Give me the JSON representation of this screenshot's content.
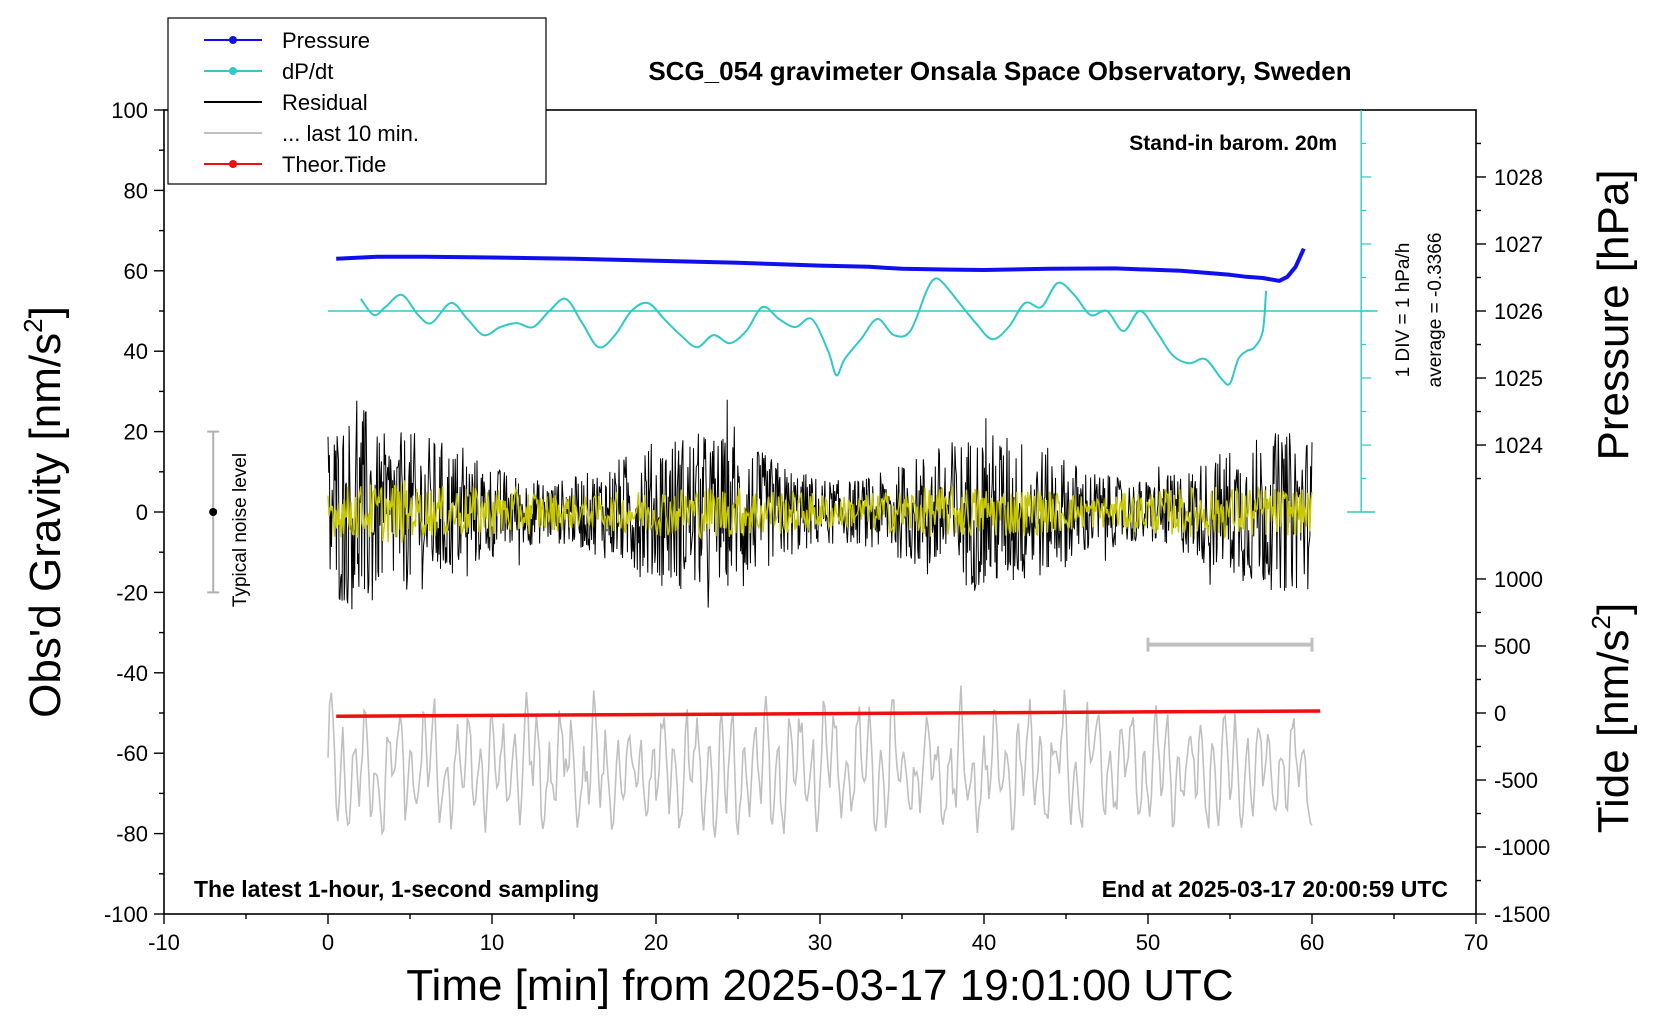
{
  "chart_data": {
    "type": "line",
    "title": "SCG_054 gravimeter Onsala Space Observatory, Sweden",
    "xlabel": "Time [min] from 2025-03-17 19:01:00 UTC",
    "ylabel_left_text": "Obs'd Gravity [nm/s",
    "ylabel_left_sup": "2",
    "ylabel_left_close": "]",
    "ylabel_right_top": "Pressure [hPa]",
    "ylabel_right_bottom_text": "Tide [nm/s",
    "ylabel_right_bottom_sup": "2",
    "ylabel_right_bottom_close": "]",
    "xlim": [
      -10,
      70
    ],
    "ylim": [
      -100,
      100
    ],
    "xticks": [
      "-10",
      "0",
      "10",
      "20",
      "30",
      "40",
      "50",
      "60",
      "70"
    ],
    "yticks_left": [
      "-100",
      "-80",
      "-60",
      "-40",
      "-20",
      "0",
      "20",
      "40",
      "60",
      "80",
      "100"
    ],
    "pressure_axis": {
      "ticks": [
        "1024",
        "1025",
        "1026",
        "1027",
        "1028"
      ],
      "values": [
        1024,
        1025,
        1026,
        1027,
        1028
      ],
      "gravity_equivalent_at_1026": 50,
      "gravity_units_per_hPa": 16.67
    },
    "tide_axis": {
      "ticks": [
        "1000",
        "500",
        "0",
        "-500",
        "-1000",
        "-1500"
      ],
      "values": [
        1000,
        500,
        0,
        -500,
        -1000,
        -1500
      ],
      "gravity_equivalent_at_0": -50,
      "gravity_units_per_500": 16.67
    },
    "legend": [
      {
        "label": "Pressure",
        "color": "#1010ee",
        "marker": true
      },
      {
        "label": "dP/dt",
        "color": "#30c8c8",
        "marker": true
      },
      {
        "label": "Residual",
        "color": "#000000",
        "marker": false
      },
      {
        "label": "... last 10 min.",
        "color": "#c0c0c0",
        "marker": false
      },
      {
        "label": "Theor.Tide",
        "color": "#ee1010",
        "marker": true
      }
    ],
    "annotations": {
      "barom": "Stand-in barom. 20m",
      "div_scale": "1 DIV = 1 hPa/h",
      "average": "average = -0.3366",
      "noise": "Typical noise level",
      "bottom_left": "The latest 1-hour, 1-second sampling",
      "bottom_right": "End at 2025-03-17 20:00:59 UTC"
    },
    "noise_bar": {
      "x": -7,
      "y_center": 0,
      "y_range": [
        -20,
        20
      ]
    },
    "last10_bar": {
      "x_range": [
        50,
        60
      ],
      "y": -33
    },
    "dpdt_zero_line": {
      "y": 50,
      "x_range": [
        0,
        64
      ]
    },
    "dpdt_scale_axis": {
      "x": 63,
      "y_range": [
        0,
        100
      ],
      "division": 16.67
    },
    "series": [
      {
        "name": "Pressure",
        "color": "#1010ee",
        "x": [
          0.5,
          3,
          6,
          10,
          15,
          20,
          25,
          30,
          33,
          35,
          38,
          40,
          44,
          48,
          52,
          55,
          56,
          57,
          58,
          58.5,
          59,
          59.5
        ],
        "y": [
          63,
          63.5,
          63.5,
          63.3,
          63,
          62.5,
          62,
          61.3,
          61,
          60.5,
          60.3,
          60.2,
          60.5,
          60.6,
          60,
          59,
          58.5,
          58.2,
          57.5,
          58.5,
          61,
          65.5
        ]
      },
      {
        "name": "dP/dt",
        "color": "#30c8c8",
        "x": [
          2,
          2.8,
          3.5,
          4.5,
          5.5,
          6.3,
          7.5,
          8.5,
          9.5,
          10.5,
          11.5,
          12.5,
          13.5,
          14.5,
          15.5,
          16.5,
          17.5,
          18.5,
          19.5,
          20.5,
          21.5,
          22.5,
          23.5,
          24.5,
          25.5,
          26.5,
          27.5,
          28.5,
          29.5,
          30.5,
          31,
          31.5,
          32.5,
          33.5,
          34.5,
          35.5,
          36.5,
          37,
          37.5,
          38.5,
          39.5,
          40.5,
          41.5,
          42.5,
          43.5,
          44.5,
          45.5,
          46.5,
          47.5,
          48.5,
          49.5,
          50.5,
          51.5,
          52.5,
          53.5,
          54.5,
          55,
          55.5,
          56,
          56.5,
          57,
          57.2
        ],
        "y": [
          53,
          49,
          51,
          54,
          49,
          47,
          52,
          48,
          44,
          46,
          47,
          46,
          50,
          53,
          47,
          41,
          44,
          50,
          52,
          48,
          44,
          41,
          44,
          42,
          45,
          51,
          48,
          46,
          48,
          40,
          34,
          38,
          43,
          48,
          44,
          45,
          55,
          58,
          57,
          52,
          47,
          43,
          46,
          52,
          51,
          57,
          54,
          49,
          50,
          45,
          50,
          45,
          39,
          37,
          38,
          33,
          32,
          38,
          40,
          41,
          45,
          55
        ]
      },
      {
        "name": "Residual",
        "color": "#000000",
        "x_range": [
          0,
          60
        ],
        "amplitude_range": [
          -34,
          34
        ],
        "note": "1-second sampled noise around 0"
      },
      {
        "name": "Residual (filtered)",
        "color": "#c8c800",
        "x_range": [
          0,
          60
        ],
        "amplitude_range": [
          -7,
          7
        ]
      },
      {
        "name": "... last 10 min.",
        "color": "#c0c0c0",
        "x_range": [
          0,
          60
        ],
        "y_center": -64,
        "amplitude_range": [
          -82,
          -37
        ]
      },
      {
        "name": "Theor.Tide",
        "color": "#ee1010",
        "x": [
          0.5,
          60.5
        ],
        "y": [
          -50.8,
          -49.5
        ]
      }
    ]
  }
}
